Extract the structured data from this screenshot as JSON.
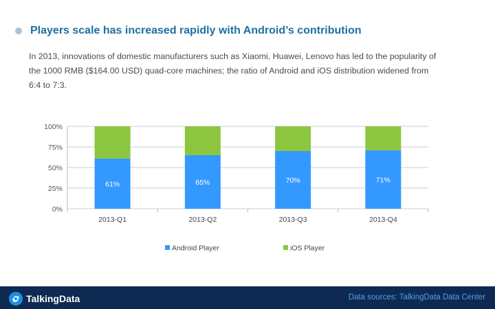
{
  "header": {
    "title": "Players scale has increased rapidly with Android’s contribution",
    "body": "In 2013, innovations of domestic manufacturers such as Xiaomi, Huawei, Lenovo has led to the popularity of the 1000 RMB ($164.00 USD) quad-core machines; the ratio of Android and iOS distribution widened from 6:4 to 7:3."
  },
  "chart_data": {
    "type": "bar",
    "stacked": true,
    "categories": [
      "2013-Q1",
      "2013-Q2",
      "2013-Q3",
      "2013-Q4"
    ],
    "series": [
      {
        "name": "Android Player",
        "values": [
          61,
          65,
          70,
          71
        ],
        "color": "#3399ff",
        "labels": [
          "61%",
          "65%",
          "70%",
          "71%"
        ]
      },
      {
        "name": "iOS Player",
        "values": [
          39,
          35,
          30,
          29
        ],
        "color": "#8cc63f"
      }
    ],
    "ylim": [
      0,
      100
    ],
    "yticks": [
      "0%",
      "25%",
      "50%",
      "75%",
      "100%"
    ],
    "grid": true,
    "legend": "bottom"
  },
  "footer": {
    "logo_text": "TalkingData",
    "logo_icon": "talkingdata-logo-icon",
    "source": "Data sources: TalkingData Data Center"
  }
}
